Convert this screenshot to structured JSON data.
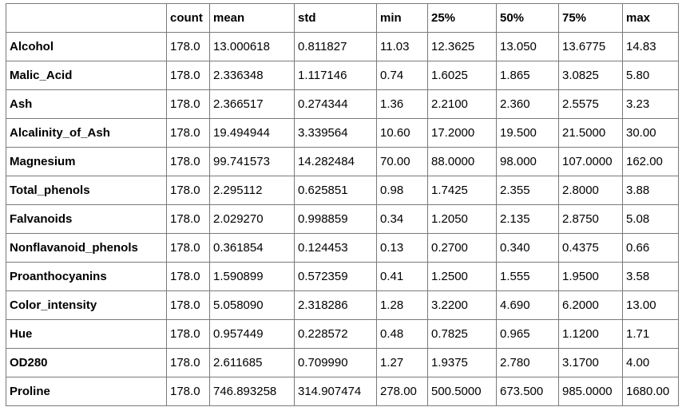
{
  "table": {
    "columns": [
      "count",
      "mean",
      "std",
      "min",
      "25%",
      "50%",
      "75%",
      "max"
    ],
    "rows": [
      {
        "label": "Alcohol",
        "values": [
          "178.0",
          "13.000618",
          "0.811827",
          "11.03",
          "12.3625",
          "13.050",
          "13.6775",
          "14.83"
        ]
      },
      {
        "label": "Malic_Acid",
        "values": [
          "178.0",
          "2.336348",
          "1.117146",
          "0.74",
          "1.6025",
          "1.865",
          "3.0825",
          "5.80"
        ]
      },
      {
        "label": "Ash",
        "values": [
          "178.0",
          "2.366517",
          "0.274344",
          "1.36",
          "2.2100",
          "2.360",
          "2.5575",
          "3.23"
        ]
      },
      {
        "label": "Alcalinity_of_Ash",
        "values": [
          "178.0",
          "19.494944",
          "3.339564",
          "10.60",
          "17.2000",
          "19.500",
          "21.5000",
          "30.00"
        ]
      },
      {
        "label": "Magnesium",
        "values": [
          "178.0",
          "99.741573",
          "14.282484",
          "70.00",
          "88.0000",
          "98.000",
          "107.0000",
          "162.00"
        ]
      },
      {
        "label": "Total_phenols",
        "values": [
          "178.0",
          "2.295112",
          "0.625851",
          "0.98",
          "1.7425",
          "2.355",
          "2.8000",
          "3.88"
        ]
      },
      {
        "label": "Falvanoids",
        "values": [
          "178.0",
          "2.029270",
          "0.998859",
          "0.34",
          "1.2050",
          "2.135",
          "2.8750",
          "5.08"
        ]
      },
      {
        "label": "Nonflavanoid_phenols",
        "values": [
          "178.0",
          "0.361854",
          "0.124453",
          "0.13",
          "0.2700",
          "0.340",
          "0.4375",
          "0.66"
        ]
      },
      {
        "label": "Proanthocyanins",
        "values": [
          "178.0",
          "1.590899",
          "0.572359",
          "0.41",
          "1.2500",
          "1.555",
          "1.9500",
          "3.58"
        ]
      },
      {
        "label": "Color_intensity",
        "values": [
          "178.0",
          "5.058090",
          "2.318286",
          "1.28",
          "3.2200",
          "4.690",
          "6.2000",
          "13.00"
        ]
      },
      {
        "label": "Hue",
        "values": [
          "178.0",
          "0.957449",
          "0.228572",
          "0.48",
          "0.7825",
          "0.965",
          "1.1200",
          "1.71"
        ]
      },
      {
        "label": "OD280",
        "values": [
          "178.0",
          "2.611685",
          "0.709990",
          "1.27",
          "1.9375",
          "2.780",
          "3.1700",
          "4.00"
        ]
      },
      {
        "label": "Proline",
        "values": [
          "178.0",
          "746.893258",
          "314.907474",
          "278.00",
          "500.5000",
          "673.500",
          "985.0000",
          "1680.00"
        ]
      }
    ]
  }
}
